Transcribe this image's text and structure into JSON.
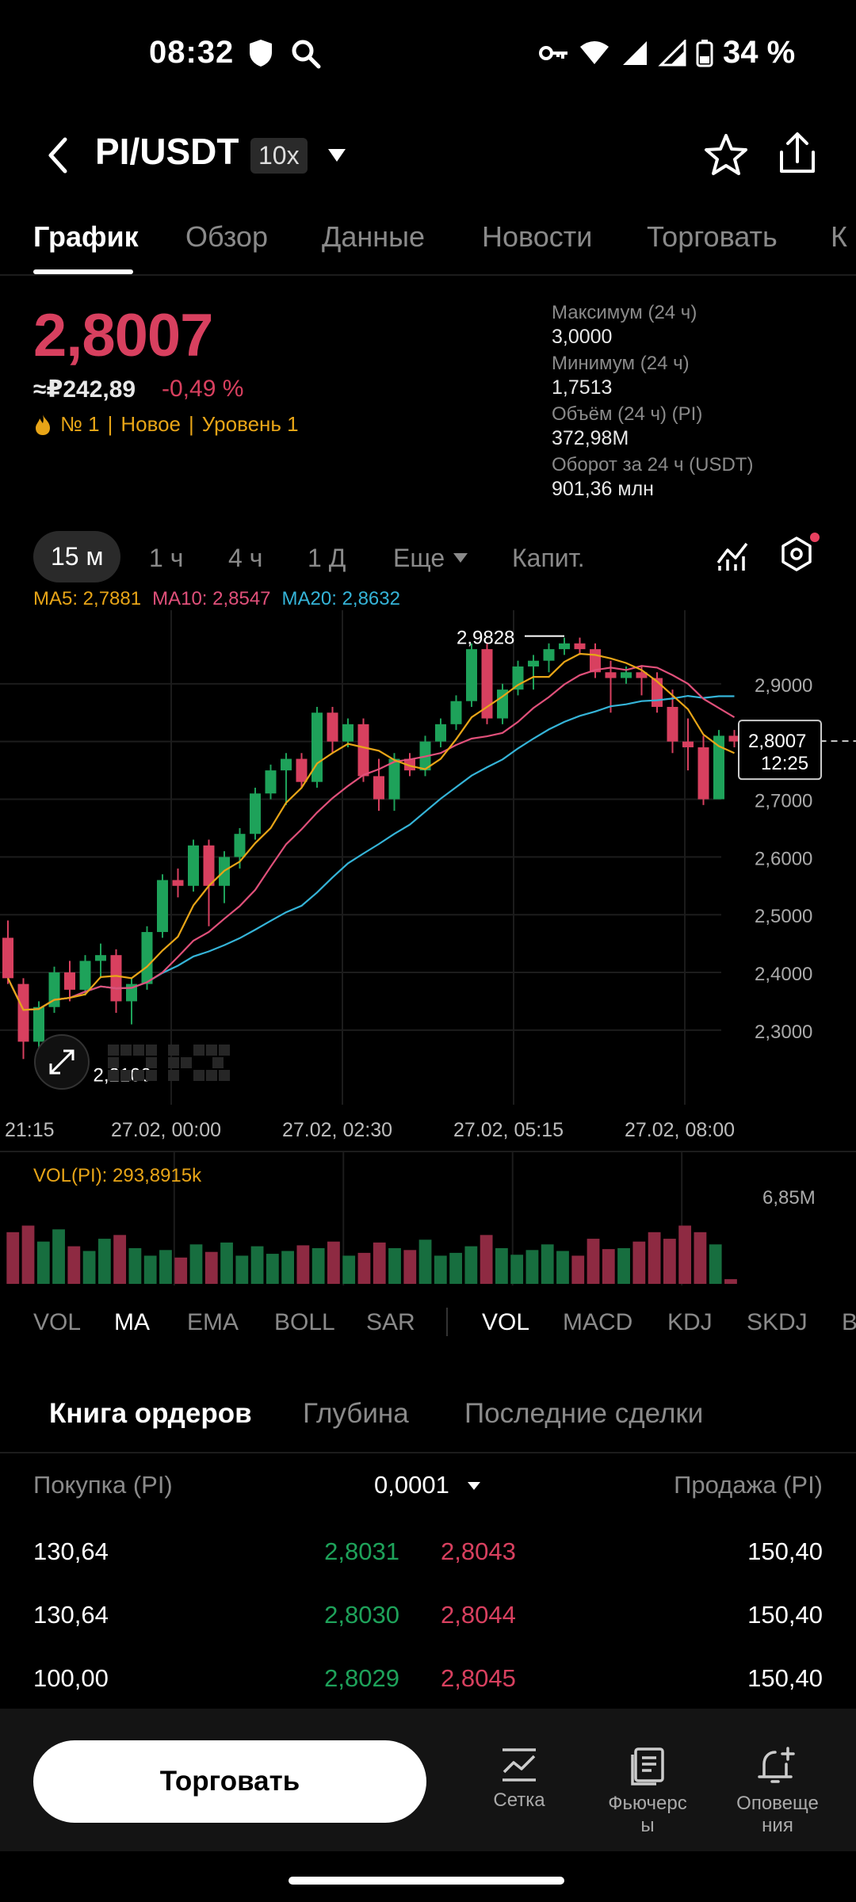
{
  "status_bar": {
    "time": "08:32",
    "battery": "34 %"
  },
  "header": {
    "pair": "PI/USDT",
    "leverage": "10x"
  },
  "tabs": [
    "График",
    "Обзор",
    "Данные",
    "Новости",
    "Торговать",
    "К"
  ],
  "price": {
    "last": "2,8007",
    "rub": "≈₽242,89",
    "change": "-0,49 %",
    "tags": [
      "№ 1",
      "Новое",
      "Уровень 1"
    ],
    "tag_separator": "|"
  },
  "stats": [
    {
      "label": "Максимум (24 ч)",
      "value": "3,0000"
    },
    {
      "label": "Минимум (24 ч)",
      "value": "1,7513"
    },
    {
      "label": "Объём (24 ч) (PI)",
      "value": "372,98M"
    },
    {
      "label": "Оборот за 24 ч (USDT)",
      "value": "901,36 млн"
    }
  ],
  "timeframes": [
    "15 м",
    "1 ч",
    "4 ч",
    "1 Д",
    "Еще",
    "Капит."
  ],
  "ma_legend": {
    "ma5": "MA5: 2,7881",
    "ma10": "MA10: 2,8547",
    "ma20": "MA20: 2,8632"
  },
  "chart_data": {
    "type": "candlestick",
    "price_axis": [
      "2,9000",
      "2,8000",
      "2,7000",
      "2,6000",
      "2,5000",
      "2,4000",
      "2,3000"
    ],
    "y_range": [
      2.19,
      3.0
    ],
    "high_marker": "2,9828",
    "low_marker": "2,2100",
    "current_price": "2,8007",
    "countdown": "12:25",
    "time_labels": [
      "21:15",
      "27.02, 00:00",
      "27.02, 02:30",
      "27.02, 05:15",
      "27.02, 08:00"
    ],
    "candles": [
      [
        2.46,
        2.49,
        2.38,
        2.39
      ],
      [
        2.38,
        2.39,
        2.25,
        2.28
      ],
      [
        2.28,
        2.35,
        2.27,
        2.34
      ],
      [
        2.34,
        2.41,
        2.33,
        2.4
      ],
      [
        2.4,
        2.42,
        2.35,
        2.37
      ],
      [
        2.37,
        2.43,
        2.36,
        2.42
      ],
      [
        2.42,
        2.45,
        2.39,
        2.43
      ],
      [
        2.43,
        2.44,
        2.33,
        2.35
      ],
      [
        2.35,
        2.39,
        2.31,
        2.38
      ],
      [
        2.38,
        2.48,
        2.37,
        2.47
      ],
      [
        2.47,
        2.57,
        2.46,
        2.56
      ],
      [
        2.56,
        2.58,
        2.53,
        2.55
      ],
      [
        2.55,
        2.63,
        2.54,
        2.62
      ],
      [
        2.62,
        2.63,
        2.48,
        2.55
      ],
      [
        2.55,
        2.61,
        2.52,
        2.6
      ],
      [
        2.6,
        2.65,
        2.58,
        2.64
      ],
      [
        2.64,
        2.72,
        2.63,
        2.71
      ],
      [
        2.71,
        2.76,
        2.7,
        2.75
      ],
      [
        2.75,
        2.78,
        2.69,
        2.77
      ],
      [
        2.77,
        2.78,
        2.72,
        2.73
      ],
      [
        2.73,
        2.86,
        2.72,
        2.85
      ],
      [
        2.85,
        2.86,
        2.78,
        2.8
      ],
      [
        2.8,
        2.84,
        2.79,
        2.83
      ],
      [
        2.83,
        2.84,
        2.73,
        2.74
      ],
      [
        2.74,
        2.77,
        2.68,
        2.7
      ],
      [
        2.7,
        2.78,
        2.68,
        2.77
      ],
      [
        2.77,
        2.78,
        2.74,
        2.75
      ],
      [
        2.75,
        2.81,
        2.74,
        2.8
      ],
      [
        2.8,
        2.84,
        2.79,
        2.83
      ],
      [
        2.83,
        2.88,
        2.82,
        2.87
      ],
      [
        2.87,
        2.97,
        2.86,
        2.96
      ],
      [
        2.96,
        2.97,
        2.83,
        2.84
      ],
      [
        2.84,
        2.9,
        2.83,
        2.89
      ],
      [
        2.89,
        2.94,
        2.88,
        2.93
      ],
      [
        2.93,
        2.95,
        2.89,
        2.94
      ],
      [
        2.94,
        2.97,
        2.92,
        2.96
      ],
      [
        2.96,
        2.98,
        2.95,
        2.97
      ],
      [
        2.97,
        2.98,
        2.95,
        2.96
      ],
      [
        2.96,
        2.97,
        2.91,
        2.92
      ],
      [
        2.92,
        2.94,
        2.85,
        2.91
      ],
      [
        2.91,
        2.93,
        2.9,
        2.92
      ],
      [
        2.92,
        2.93,
        2.88,
        2.91
      ],
      [
        2.91,
        2.92,
        2.85,
        2.86
      ],
      [
        2.86,
        2.89,
        2.78,
        2.8
      ],
      [
        2.8,
        2.84,
        2.75,
        2.79
      ],
      [
        2.79,
        2.81,
        2.69,
        2.7
      ],
      [
        2.7,
        2.82,
        2.7,
        2.81
      ],
      [
        2.81,
        2.82,
        2.79,
        2.8
      ]
    ],
    "volume_label": "VOL(PI): 293,8915k",
    "volume_max": "6,85M",
    "volumes": [
      0.55,
      0.62,
      0.45,
      0.58,
      0.4,
      0.35,
      0.48,
      0.52,
      0.38,
      0.3,
      0.36,
      0.28,
      0.42,
      0.34,
      0.44,
      0.3,
      0.4,
      0.32,
      0.35,
      0.41,
      0.38,
      0.45,
      0.3,
      0.33,
      0.44,
      0.38,
      0.36,
      0.47,
      0.3,
      0.33,
      0.4,
      0.52,
      0.38,
      0.31,
      0.36,
      0.42,
      0.35,
      0.3,
      0.48,
      0.37,
      0.38,
      0.45,
      0.55,
      0.48,
      0.62,
      0.55,
      0.42,
      0.05
    ]
  },
  "indicators": [
    "VOL",
    "MA",
    "EMA",
    "BOLL",
    "SAR",
    "VOL",
    "MACD",
    "KDJ",
    "SKDJ",
    "B"
  ],
  "order_book": {
    "tabs": [
      "Книга ордеров",
      "Глубина",
      "Последние сделки"
    ],
    "bid_header": "Покупка (PI)",
    "precision": "0,0001",
    "ask_header": "Продажа (PI)",
    "rows": [
      {
        "bid_qty": "130,64",
        "bid_price": "2,8031",
        "ask_price": "2,8043",
        "ask_qty": "150,40"
      },
      {
        "bid_qty": "130,64",
        "bid_price": "2,8030",
        "ask_price": "2,8044",
        "ask_qty": "150,40"
      },
      {
        "bid_qty": "100,00",
        "bid_price": "2,8029",
        "ask_price": "2,8045",
        "ask_qty": "150,40"
      }
    ]
  },
  "bottom_bar": {
    "trade_button": "Торговать",
    "items": [
      {
        "line1": "Сетка",
        "line2": ""
      },
      {
        "line1": "Фьючерс",
        "line2": "ы"
      },
      {
        "line1": "Оповеще",
        "line2": "ния"
      }
    ]
  },
  "colors": {
    "up": "#1ea25a",
    "down": "#d8405f",
    "ma5": "#e8a517",
    "ma10": "#e0507a",
    "ma20": "#35b4d8"
  }
}
